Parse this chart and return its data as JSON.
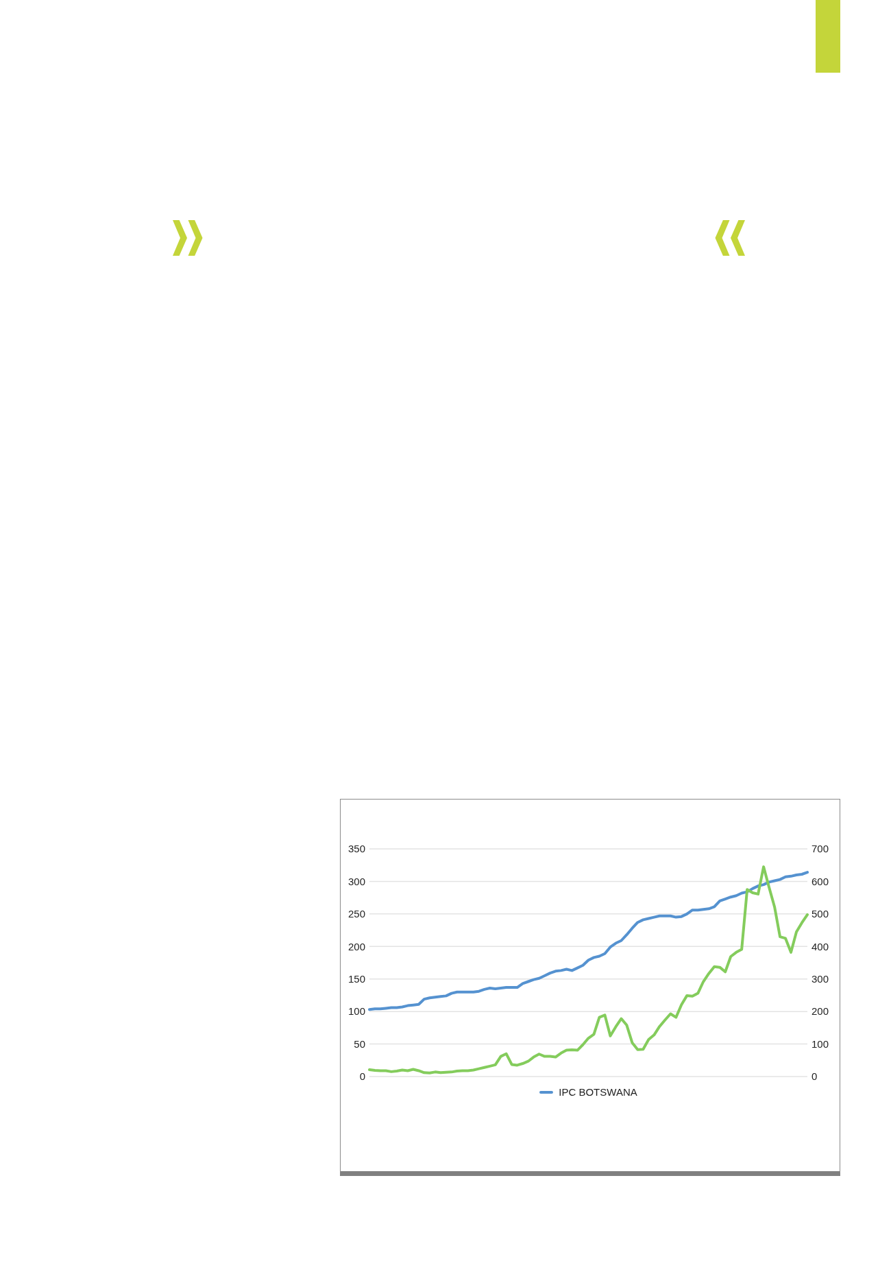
{
  "chart_data": {
    "type": "line",
    "categories": [
      null,
      null,
      null,
      null,
      null,
      null,
      null,
      null,
      null,
      null,
      null,
      null,
      null,
      null,
      null,
      null,
      null,
      null,
      null,
      null,
      null,
      null,
      null,
      null,
      null,
      null,
      null,
      null,
      null,
      null,
      null,
      null,
      null,
      null,
      null,
      null,
      null,
      null,
      null,
      null,
      null,
      null,
      null,
      null,
      null,
      null,
      null,
      null,
      null,
      null,
      null,
      null,
      null,
      null,
      null,
      null,
      null,
      null,
      null,
      null,
      null,
      null,
      null,
      null,
      null,
      null,
      null,
      null,
      null,
      null,
      null,
      null,
      null,
      null,
      null,
      null,
      null,
      null,
      null,
      null,
      null
    ],
    "series": [
      {
        "name": "IPC BOTSWANA",
        "color": "#5592d0",
        "values": [
          103,
          104,
          104,
          105,
          106,
          106,
          107,
          109,
          110,
          111,
          119,
          121,
          122,
          123,
          124,
          128,
          130,
          130,
          130,
          130,
          131,
          134,
          136,
          135,
          136,
          137,
          137,
          137,
          143,
          146,
          149,
          151,
          155,
          159,
          162,
          163,
          165,
          163,
          167,
          171,
          179,
          183,
          185,
          189,
          199,
          205,
          209,
          218,
          228,
          237,
          241,
          243,
          245,
          247,
          247,
          247,
          245,
          246,
          250,
          256,
          256,
          257,
          258,
          261,
          270,
          273,
          276,
          278,
          282,
          284,
          289,
          293,
          295,
          299,
          301,
          303,
          307,
          308,
          310,
          311,
          314
        ]
      },
      {
        "color": "#84cc5c",
        "axis": "y2",
        "values": [
          21,
          19,
          18,
          18,
          15,
          17,
          20,
          18,
          22,
          18,
          12,
          11,
          14,
          12,
          13,
          14,
          17,
          18,
          18,
          20,
          24,
          28,
          32,
          36,
          62,
          70,
          37,
          35,
          40,
          47,
          60,
          69,
          62,
          62,
          60,
          72,
          81,
          82,
          81,
          98,
          118,
          130,
          182,
          189,
          125,
          153,
          178,
          158,
          104,
          83,
          84,
          114,
          128,
          154,
          174,
          193,
          182,
          221,
          249,
          247,
          256,
          292,
          317,
          338,
          336,
          322,
          369,
          382,
          391,
          575,
          565,
          561,
          645,
          582,
          522,
          430,
          425,
          382,
          445,
          473,
          498
        ]
      }
    ],
    "ylim": [
      0,
      350
    ],
    "yticks": [
      0,
      50,
      100,
      150,
      200,
      250,
      300,
      350
    ],
    "y2lim": [
      0,
      700
    ],
    "y2ticks": [
      0,
      100,
      200,
      300,
      400,
      500,
      600,
      700
    ],
    "grid": "y",
    "legend": "bottom"
  }
}
